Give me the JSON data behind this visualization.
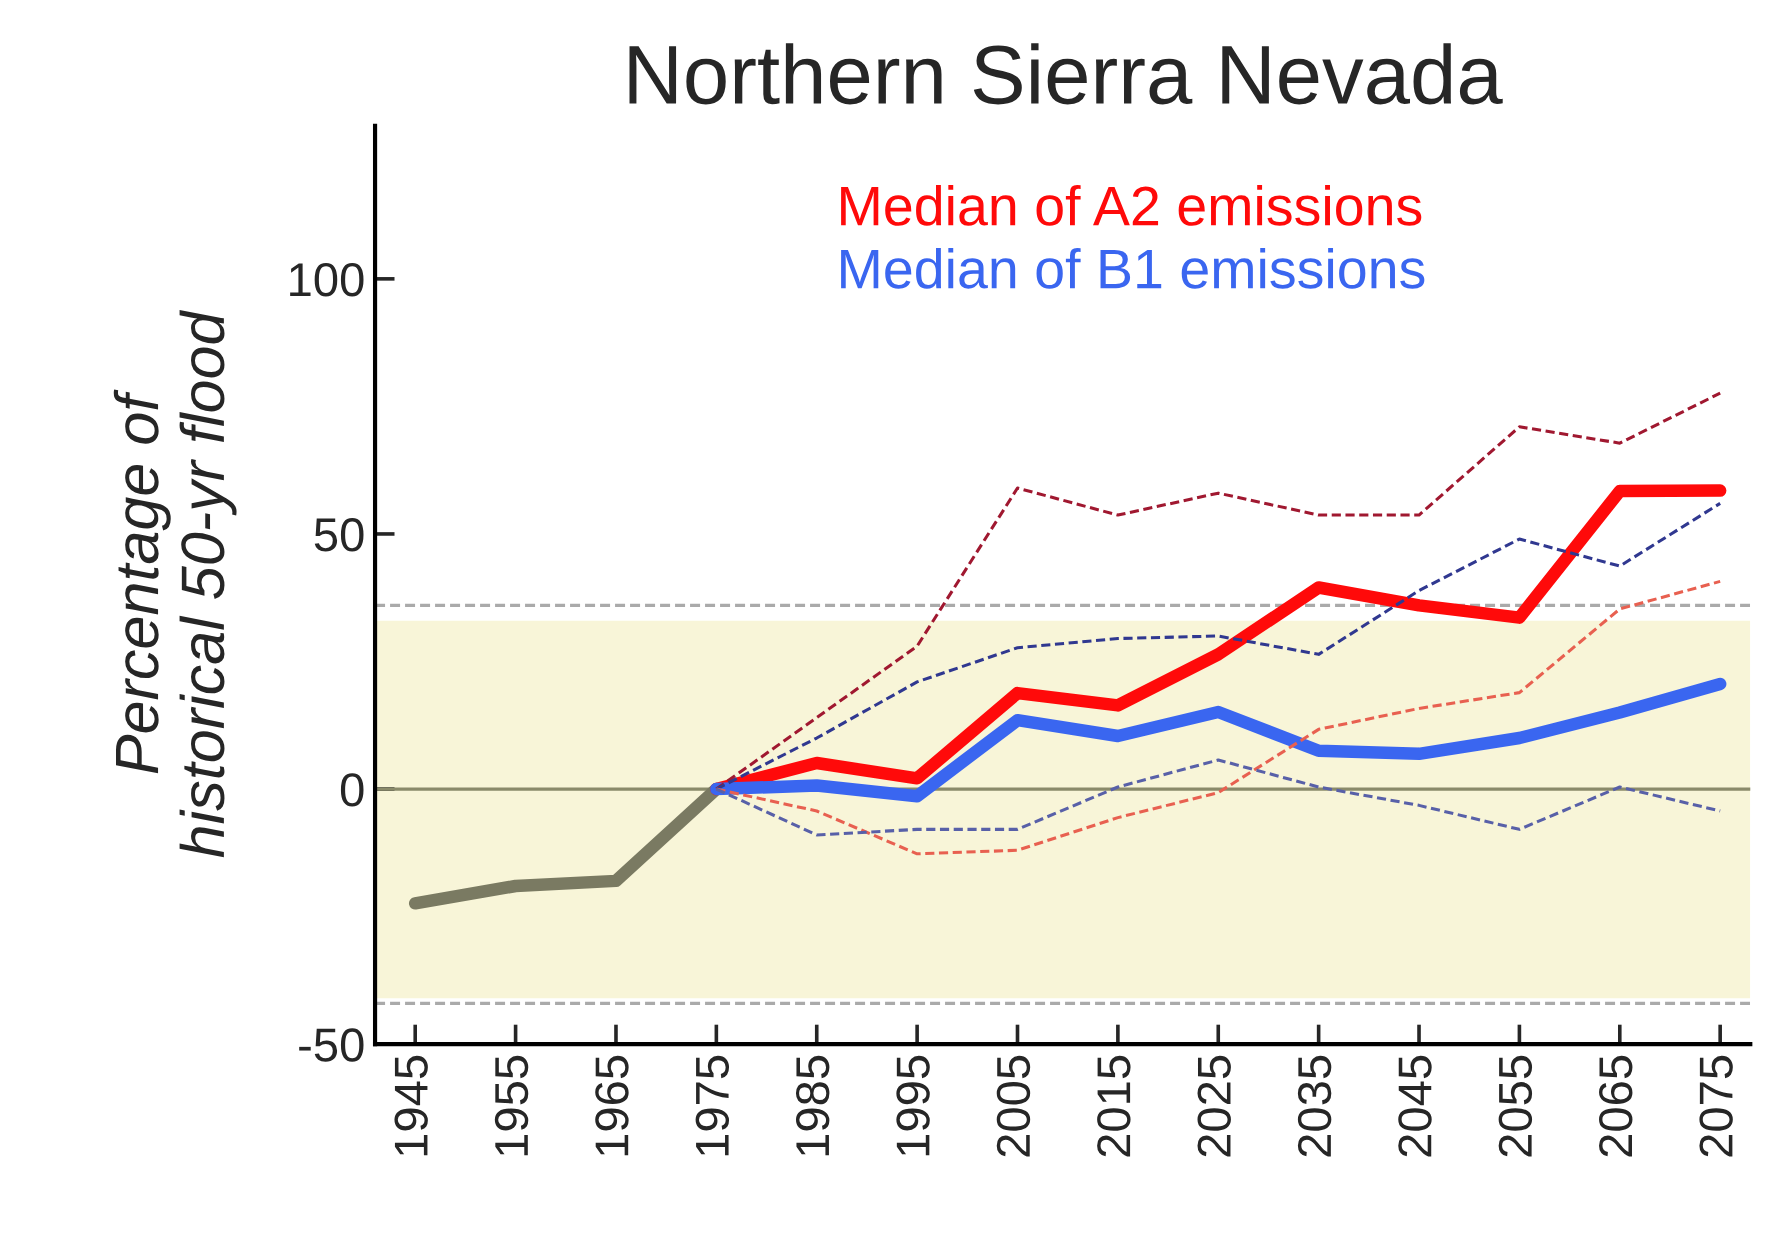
{
  "chart_data": {
    "type": "line",
    "title": "Northern Sierra Nevada",
    "ylabel": "Percentage of\nhistorical 50-yr flood",
    "xlim": [
      1941,
      2078
    ],
    "xticks": [
      1945,
      1955,
      1965,
      1975,
      1985,
      1995,
      2005,
      2015,
      2025,
      2035,
      2045,
      2055,
      2065,
      2075
    ],
    "ylim": [
      -50,
      130
    ],
    "yticks": [
      -50,
      0,
      50,
      100
    ],
    "grid": false,
    "legend": "top",
    "marker": "none",
    "bands": [
      {
        "axis": "y",
        "from": -41,
        "to": 33,
        "color": "#f8f5d8"
      }
    ],
    "ref_lines": [
      {
        "axis": "y",
        "value": 0,
        "color": "#8a8a6a",
        "line_style": "solid"
      },
      {
        "axis": "y",
        "value": 36,
        "color": "#aaaaaa",
        "line_style": "dashed"
      },
      {
        "axis": "y",
        "value": -42,
        "color": "#aaaaaa",
        "line_style": "dashed"
      }
    ],
    "series": [
      {
        "color": "#7a7a62",
        "line_style": "solid",
        "x": [
          1945,
          1955,
          1965,
          1975
        ],
        "values": [
          -22.4,
          -19,
          -18,
          0
        ]
      },
      {
        "color": "#a01830",
        "line_style": "dashed",
        "x": [
          1975,
          1985,
          1995,
          2005,
          2015,
          2025,
          2035,
          2045,
          2055,
          2065,
          2075
        ],
        "values": [
          0,
          14,
          28,
          59,
          53.7,
          58,
          53.7,
          53.7,
          71,
          67.8,
          77.6
        ]
      },
      {
        "color": "#303890",
        "line_style": "dashed",
        "x": [
          1975,
          1985,
          1995,
          2005,
          2015,
          2025,
          2035,
          2045,
          2055,
          2065,
          2075
        ],
        "values": [
          0,
          10,
          21,
          27.7,
          29.5,
          30,
          26.4,
          38.9,
          49,
          43.7,
          56
        ]
      },
      {
        "color": "#e86050",
        "line_style": "dashed",
        "x": [
          1975,
          1985,
          1995,
          2005,
          2015,
          2025,
          2035,
          2045,
          2055,
          2065,
          2075
        ],
        "values": [
          0,
          -4.3,
          -12.7,
          -12,
          -5.6,
          -0.7,
          11.7,
          15.8,
          18.9,
          35.3,
          40.7
        ]
      },
      {
        "color": "#5860a8",
        "line_style": "dashed",
        "x": [
          1975,
          1985,
          1995,
          2005,
          2015,
          2025,
          2035,
          2045,
          2055,
          2065,
          2075
        ],
        "values": [
          0,
          -9,
          -7.9,
          -7.9,
          0.4,
          5.7,
          0.4,
          -3.2,
          -7.9,
          0.4,
          -4.3
        ]
      },
      {
        "name": "Median of A2 emissions",
        "color": "#ff0a0a",
        "line_style": "solid",
        "x": [
          1975,
          1985,
          1995,
          2005,
          2015,
          2025,
          2035,
          2045,
          2055,
          2065,
          2075
        ],
        "values": [
          0,
          5.1,
          2.1,
          18.8,
          16.4,
          26.4,
          39.5,
          36,
          33.6,
          58.4,
          58.5
        ]
      },
      {
        "name": "Median of B1 emissions",
        "color": "#3a66f0",
        "line_style": "solid",
        "x": [
          1975,
          1985,
          1995,
          2005,
          2015,
          2025,
          2035,
          2045,
          2055,
          2065,
          2075
        ],
        "values": [
          0,
          0.7,
          -1.4,
          13.5,
          10.4,
          15.1,
          7.5,
          6.9,
          10,
          15,
          20.6
        ]
      }
    ]
  }
}
